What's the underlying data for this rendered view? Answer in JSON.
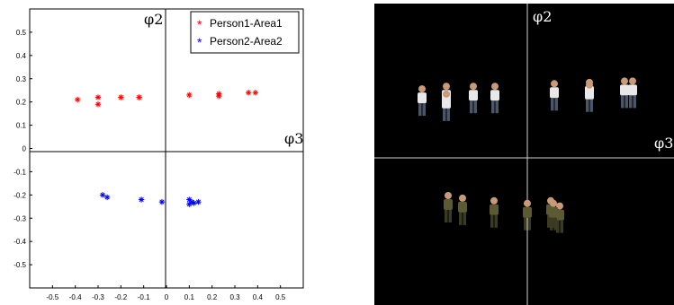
{
  "chart_data": {
    "type": "scatter",
    "xlim": [
      -0.6,
      0.6
    ],
    "ylim": [
      -0.6,
      0.6
    ],
    "x_ticks": [
      "-0.5",
      "-0.4",
      "-0.3",
      "-0.2",
      "-0.1",
      "0",
      "0.1",
      "0.2",
      "0.3",
      "0.4",
      "0.5"
    ],
    "y_ticks": [
      "0.5",
      "0.4",
      "0.3",
      "0.2",
      "0.1",
      "0",
      "-0.1",
      "-0.2",
      "-0.3",
      "-0.4",
      "-0.5"
    ],
    "axis_label_top": "φ2",
    "axis_label_right": "φ3",
    "legend_position": "top-right",
    "grid": false,
    "series": [
      {
        "name": "Person1-Area1",
        "color": "#ff0000",
        "marker": "*",
        "points": [
          [
            -0.39,
            0.21
          ],
          [
            -0.3,
            0.22
          ],
          [
            -0.3,
            0.19
          ],
          [
            -0.2,
            0.22
          ],
          [
            -0.12,
            0.22
          ],
          [
            0.1,
            0.23
          ],
          [
            0.23,
            0.235
          ],
          [
            0.23,
            0.225
          ],
          [
            0.36,
            0.24
          ],
          [
            0.39,
            0.24
          ]
        ]
      },
      {
        "name": "Person2-Area2",
        "color": "#0000ff",
        "marker": "*",
        "points": [
          [
            -0.28,
            -0.2
          ],
          [
            -0.26,
            -0.21
          ],
          [
            -0.11,
            -0.22
          ],
          [
            -0.02,
            -0.23
          ],
          [
            0.1,
            -0.22
          ],
          [
            0.1,
            -0.24
          ],
          [
            0.11,
            -0.23
          ],
          [
            0.12,
            -0.235
          ],
          [
            0.14,
            -0.23
          ]
        ]
      }
    ]
  },
  "image_panel": {
    "axis_label_top": "φ2",
    "axis_label_right": "φ3",
    "background": "#000000",
    "axis_color": "#cfcfcf",
    "figures": [
      {
        "group": "Person1-Area1",
        "shirt": "#e8e8e8",
        "pants": "#4a5568"
      },
      {
        "group": "Person2-Area2",
        "shirt": "#5b5a32",
        "pants": "#3b3a22"
      }
    ]
  }
}
